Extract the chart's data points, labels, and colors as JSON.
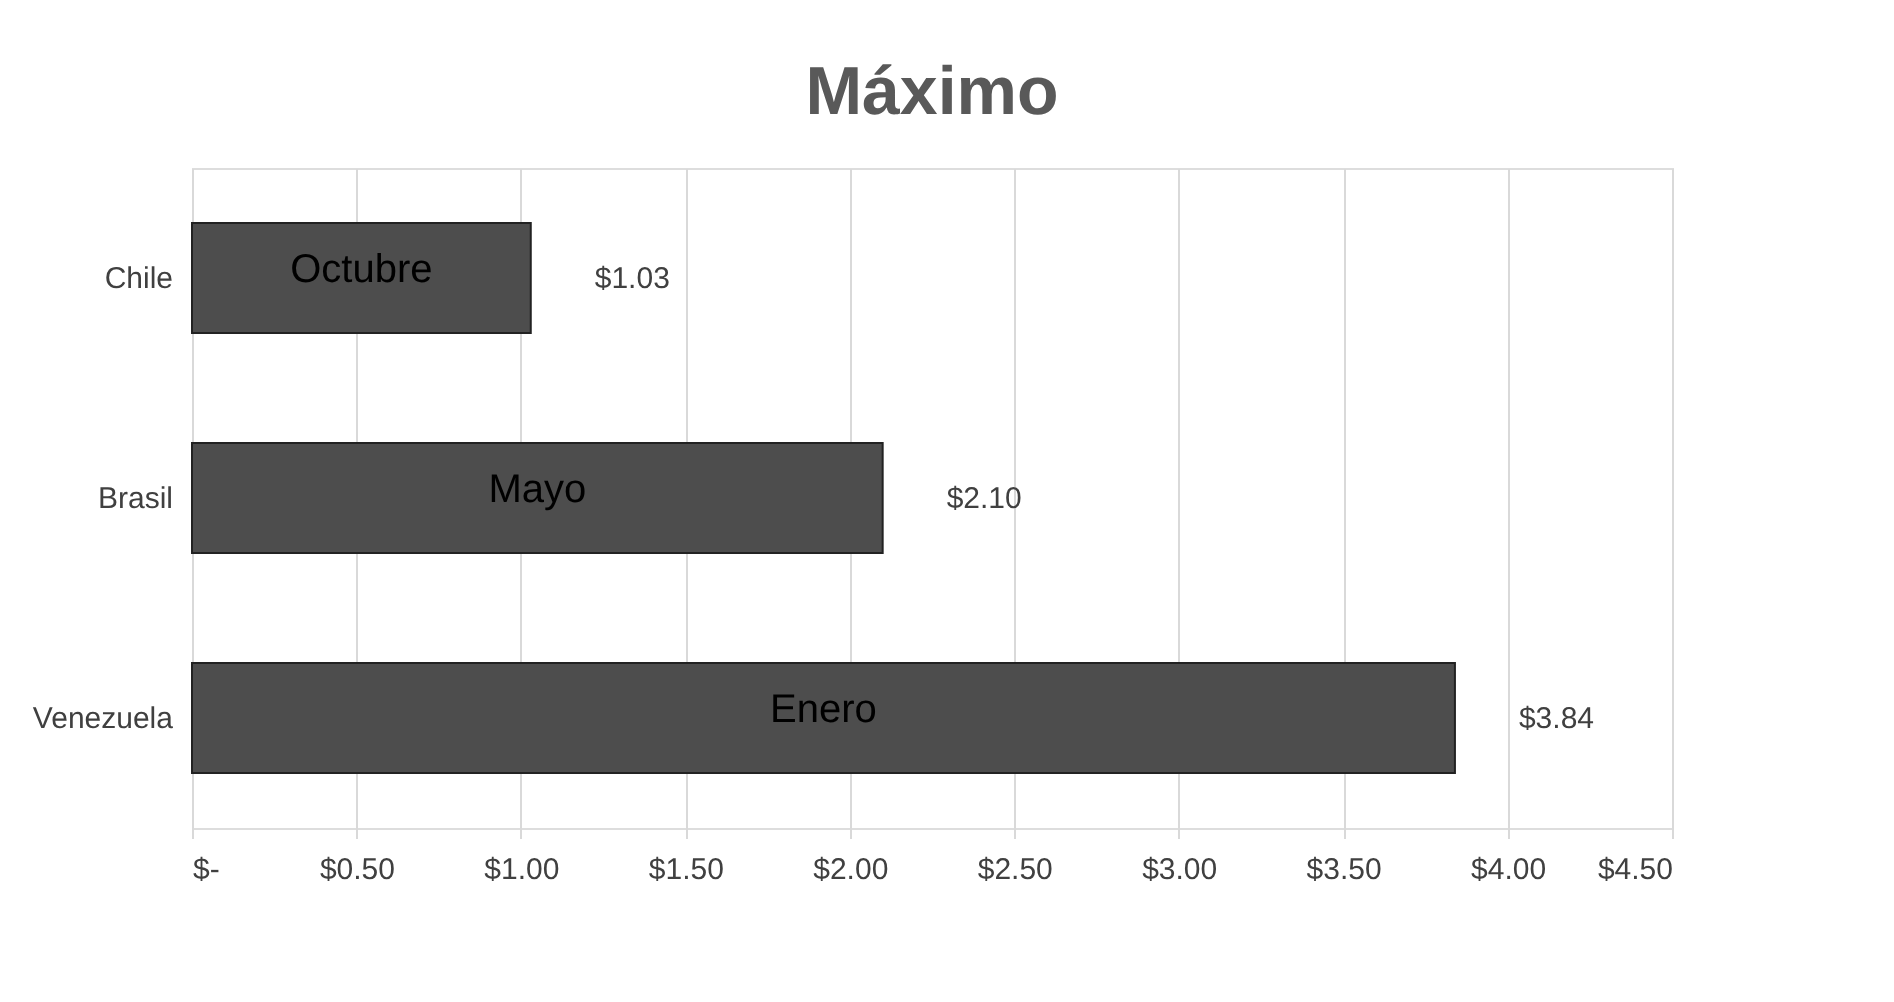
{
  "chart_data": {
    "type": "bar",
    "orientation": "horizontal",
    "title": "Máximo",
    "categories": [
      "Chile",
      "Brasil",
      "Venezuela"
    ],
    "values": [
      1.03,
      2.1,
      3.84
    ],
    "value_labels": [
      "$1.03",
      "$2.10",
      "$3.84"
    ],
    "color": "#4d4d4d",
    "xlim": [
      0,
      4.5
    ],
    "xticks": [
      {
        "value": 0,
        "label": "$-"
      },
      {
        "value": 0.5,
        "label": "$0.50"
      },
      {
        "value": 1,
        "label": "$1.00"
      },
      {
        "value": 1.5,
        "label": "$1.50"
      },
      {
        "value": 2,
        "label": "$2.00"
      },
      {
        "value": 2.5,
        "label": "$2.50"
      },
      {
        "value": 3,
        "label": "$3.00"
      },
      {
        "value": 3.5,
        "label": "$3.50"
      },
      {
        "value": 4,
        "label": "$4.00"
      },
      {
        "value": 4.5,
        "label": "$4.50"
      }
    ],
    "annotations": [
      "Octubre",
      "Mayo",
      "Enero"
    ],
    "grid": "x"
  }
}
